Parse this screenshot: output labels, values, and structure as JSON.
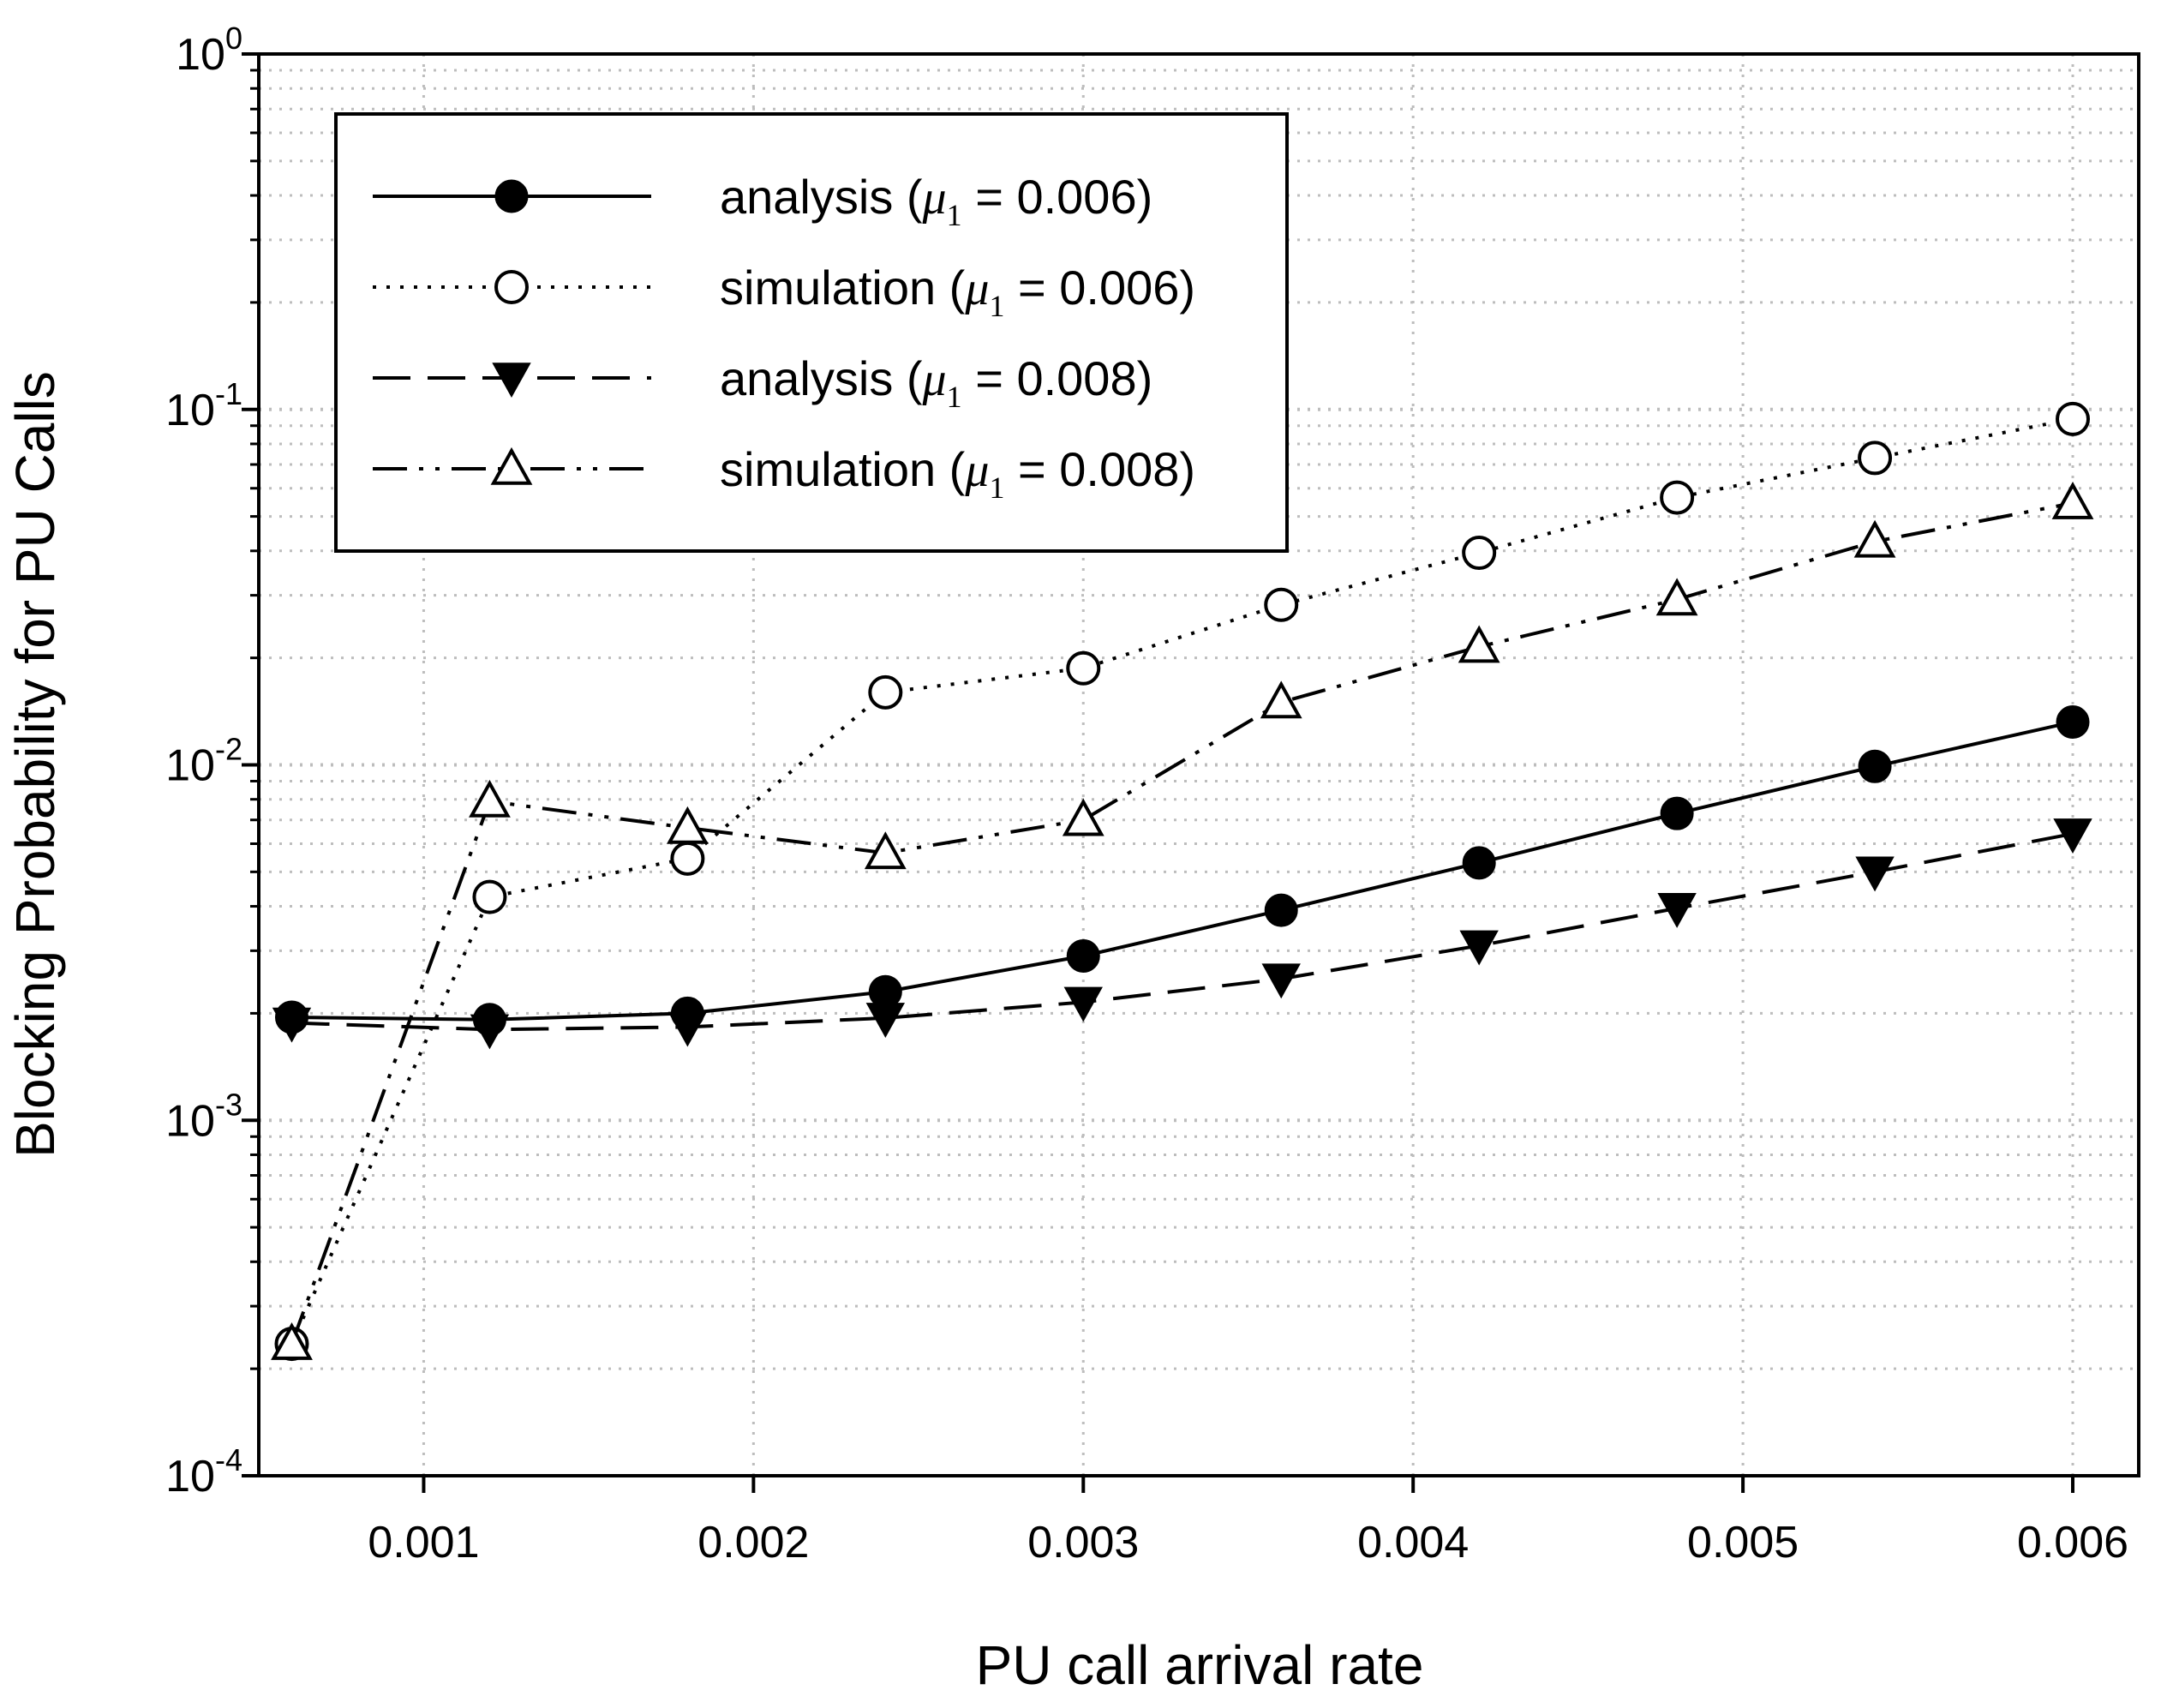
{
  "chart_data": {
    "type": "line",
    "xlabel": "PU call arrival rate",
    "ylabel": "Blocking Probability for PU Calls",
    "yscale": "log",
    "xlim": [
      0.0005,
      0.0062
    ],
    "ylim": [
      0.0001,
      1
    ],
    "grid": true,
    "legend_position": "top-left",
    "x_ticks": [
      {
        "value": 0.001,
        "label": "0.001"
      },
      {
        "value": 0.002,
        "label": "0.002"
      },
      {
        "value": 0.003,
        "label": "0.003"
      },
      {
        "value": 0.004,
        "label": "0.004"
      },
      {
        "value": 0.005,
        "label": "0.005"
      },
      {
        "value": 0.006,
        "label": "0.006"
      }
    ],
    "y_ticks": [
      {
        "value": 0.0001,
        "base": "10",
        "exp": "-4"
      },
      {
        "value": 0.001,
        "base": "10",
        "exp": "-3"
      },
      {
        "value": 0.01,
        "base": "10",
        "exp": "-2"
      },
      {
        "value": 0.1,
        "base": "10",
        "exp": "-1"
      },
      {
        "value": 1,
        "base": "10",
        "exp": "0"
      }
    ],
    "x": [
      0.0006,
      0.0012,
      0.0018,
      0.0024,
      0.003,
      0.0036,
      0.0042,
      0.0048,
      0.0054,
      0.006
    ],
    "series": [
      {
        "name": "analysis (μ1 = 0.006)",
        "legend_prefix": "analysis (",
        "legend_param": "μ",
        "legend_sub": "1",
        "legend_suffix": " = 0.006)",
        "marker": "filled-circle",
        "line_style": "solid",
        "values": [
          0.00195,
          0.00192,
          0.002,
          0.0023,
          0.0029,
          0.0039,
          0.0053,
          0.0073,
          0.0099,
          0.0132
        ]
      },
      {
        "name": "simulation (μ1 = 0.006)",
        "legend_prefix": "simulation (",
        "legend_param": "μ",
        "legend_sub": "1",
        "legend_suffix": " = 0.006)",
        "marker": "open-circle",
        "line_style": "dotted",
        "values": [
          0.000235,
          0.00425,
          0.00545,
          0.016,
          0.0187,
          0.0282,
          0.0395,
          0.0565,
          0.073,
          0.094
        ]
      },
      {
        "name": "analysis (μ1 = 0.008)",
        "legend_prefix": "analysis (",
        "legend_param": "μ",
        "legend_sub": "1",
        "legend_suffix": " = 0.008)",
        "marker": "filled-triangle-down",
        "line_style": "dashed",
        "values": [
          0.00188,
          0.0018,
          0.00183,
          0.00194,
          0.00215,
          0.0025,
          0.0031,
          0.00395,
          0.005,
          0.0064
        ]
      },
      {
        "name": "simulation (μ1 = 0.008)",
        "legend_prefix": "simulation (",
        "legend_param": "μ",
        "legend_sub": "1",
        "legend_suffix": " = 0.008)",
        "marker": "open-triangle-up",
        "line_style": "dash-dot-dot",
        "values": [
          0.000235,
          0.0079,
          0.00665,
          0.00565,
          0.007,
          0.015,
          0.0215,
          0.0292,
          0.0425,
          0.0545
        ]
      }
    ]
  }
}
